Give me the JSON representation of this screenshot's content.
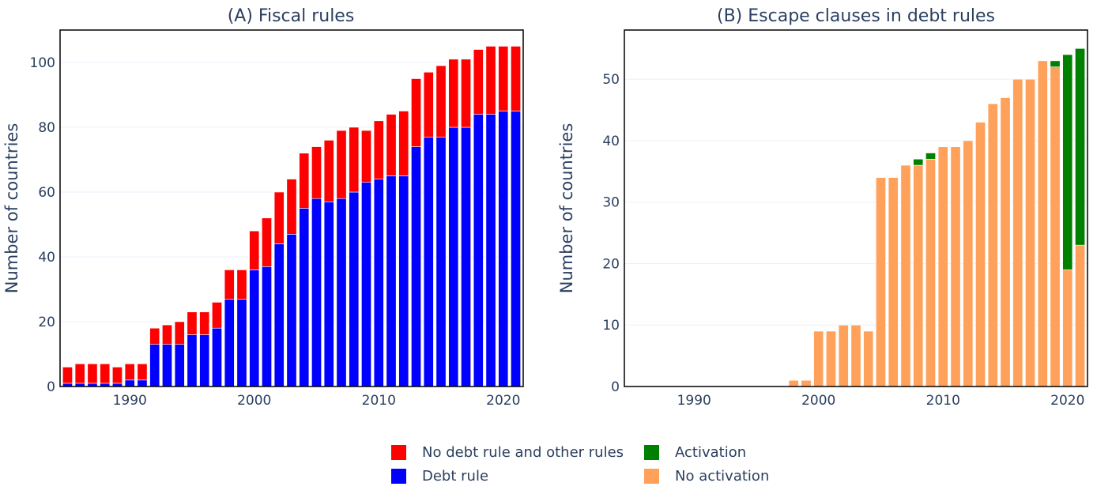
{
  "chart_data": [
    {
      "type": "bar",
      "stacked": true,
      "title": "(A) Fiscal rules",
      "xlabel": "",
      "ylabel": "Number of countries",
      "xlim": [
        1984.4,
        2021.6
      ],
      "ylim": [
        0,
        110
      ],
      "xticks": [
        1990,
        2000,
        2010,
        2020
      ],
      "yticks": [
        0,
        20,
        40,
        60,
        80,
        100
      ],
      "grid": true,
      "x": [
        1985,
        1986,
        1987,
        1988,
        1989,
        1990,
        1991,
        1992,
        1993,
        1994,
        1995,
        1996,
        1997,
        1998,
        1999,
        2000,
        2001,
        2002,
        2003,
        2004,
        2005,
        2006,
        2007,
        2008,
        2009,
        2010,
        2011,
        2012,
        2013,
        2014,
        2015,
        2016,
        2017,
        2018,
        2019,
        2020,
        2021
      ],
      "series": [
        {
          "name": "Debt rule",
          "color": "#0000ff",
          "values": [
            1,
            1,
            1,
            1,
            1,
            2,
            2,
            13,
            13,
            13,
            16,
            16,
            18,
            27,
            27,
            36,
            37,
            44,
            47,
            55,
            58,
            57,
            58,
            60,
            63,
            64,
            65,
            65,
            74,
            77,
            77,
            80,
            80,
            84,
            84,
            85,
            85
          ]
        },
        {
          "name": "No debt rule and other rules",
          "color": "#ff0000",
          "values": [
            5,
            6,
            6,
            6,
            5,
            5,
            5,
            5,
            6,
            7,
            7,
            7,
            8,
            9,
            9,
            12,
            15,
            16,
            17,
            17,
            16,
            19,
            21,
            20,
            16,
            18,
            19,
            20,
            21,
            20,
            22,
            21,
            21,
            20,
            21,
            20,
            20
          ]
        }
      ]
    },
    {
      "type": "bar",
      "stacked": true,
      "title": "(B) Escape clauses in debt rules",
      "xlabel": "",
      "ylabel": "Number of countries",
      "xlim": [
        1984.4,
        2021.6
      ],
      "ylim": [
        0,
        58
      ],
      "xticks": [
        1990,
        2000,
        2010,
        2020
      ],
      "yticks": [
        0,
        10,
        20,
        30,
        40,
        50
      ],
      "grid": true,
      "x": [
        1985,
        1986,
        1987,
        1988,
        1989,
        1990,
        1991,
        1992,
        1993,
        1994,
        1995,
        1996,
        1997,
        1998,
        1999,
        2000,
        2001,
        2002,
        2003,
        2004,
        2005,
        2006,
        2007,
        2008,
        2009,
        2010,
        2011,
        2012,
        2013,
        2014,
        2015,
        2016,
        2017,
        2018,
        2019,
        2020,
        2021
      ],
      "series": [
        {
          "name": "No activation",
          "color": "#ffa15a",
          "values": [
            0,
            0,
            0,
            0,
            0,
            0,
            0,
            0,
            0,
            0,
            0,
            0,
            0,
            1,
            1,
            9,
            9,
            10,
            10,
            9,
            34,
            34,
            36,
            36,
            37,
            39,
            39,
            40,
            43,
            46,
            47,
            50,
            50,
            53,
            52,
            19,
            23
          ]
        },
        {
          "name": "Activation",
          "color": "#008000",
          "values": [
            0,
            0,
            0,
            0,
            0,
            0,
            0,
            0,
            0,
            0,
            0,
            0,
            0,
            0,
            0,
            0,
            0,
            0,
            0,
            0,
            0,
            0,
            0,
            1,
            1,
            0,
            0,
            0,
            0,
            0,
            0,
            0,
            0,
            0,
            1,
            35,
            32
          ]
        }
      ]
    }
  ],
  "legend": {
    "items": [
      {
        "label": "No debt rule and other rules",
        "color": "#ff0000"
      },
      {
        "label": "Debt rule",
        "color": "#0000ff"
      },
      {
        "label": "Activation",
        "color": "#008000"
      },
      {
        "label": "No activation",
        "color": "#ffa15a"
      }
    ]
  },
  "style": {
    "text_color": "#2a3f5f",
    "grid_color": "#ebf0f8",
    "bar_outline": "#ffffff"
  }
}
